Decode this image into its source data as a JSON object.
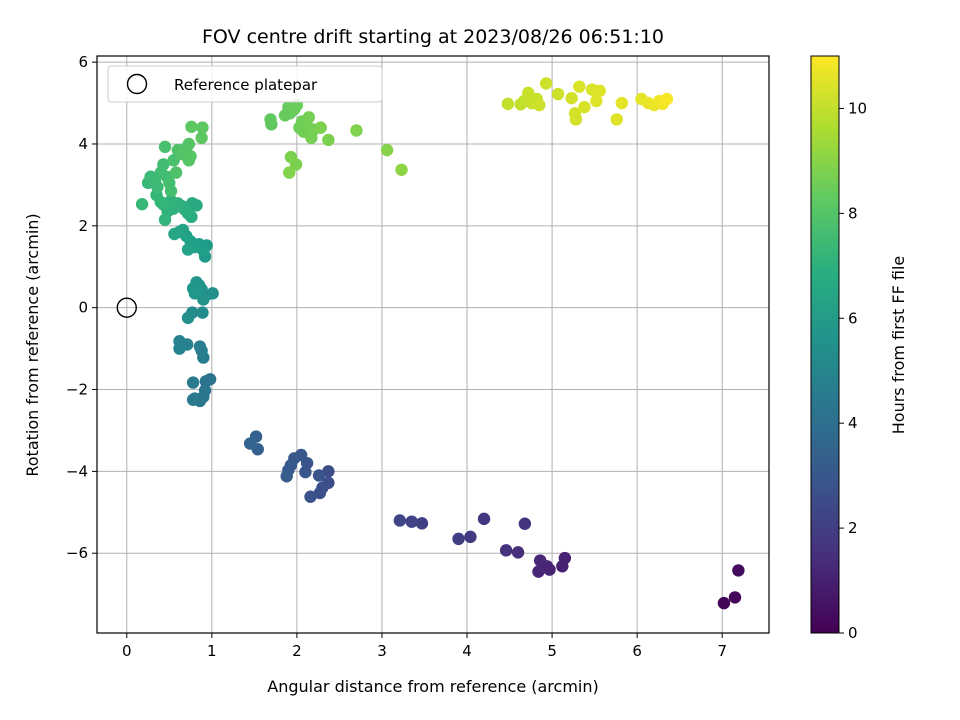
{
  "chart_data": {
    "type": "scatter",
    "title": "FOV centre drift starting at 2023/08/26 06:51:10",
    "xlabel": "Angular distance from reference (arcmin)",
    "ylabel": "Rotation from reference (arcmin)",
    "xlim": [
      -0.35,
      7.55
    ],
    "ylim": [
      -7.95,
      6.15
    ],
    "xticks": [
      0,
      1,
      2,
      3,
      4,
      5,
      6,
      7
    ],
    "yticks": [
      -6,
      -4,
      -2,
      0,
      2,
      4,
      6
    ],
    "grid": true,
    "legend": {
      "position": "top-left",
      "entries": [
        "Reference platepar"
      ]
    },
    "reference_point": {
      "x": 0,
      "y": 0
    },
    "colorbar": {
      "label": "Hours from first FF file",
      "range": [
        0,
        11
      ],
      "ticks": [
        0,
        2,
        4,
        6,
        8,
        10
      ],
      "colormap": "viridis"
    },
    "points": [
      {
        "x": 7.02,
        "y": -7.22,
        "t": 0.1
      },
      {
        "x": 7.15,
        "y": -7.08,
        "t": 0.2
      },
      {
        "x": 7.19,
        "y": -6.42,
        "t": 0.3
      },
      {
        "x": 5.15,
        "y": -6.12,
        "t": 1.0
      },
      {
        "x": 5.12,
        "y": -6.32,
        "t": 1.0
      },
      {
        "x": 4.97,
        "y": -6.4,
        "t": 1.1
      },
      {
        "x": 4.94,
        "y": -6.32,
        "t": 1.1
      },
      {
        "x": 4.86,
        "y": -6.18,
        "t": 1.2
      },
      {
        "x": 4.84,
        "y": -6.45,
        "t": 1.2
      },
      {
        "x": 4.6,
        "y": -5.98,
        "t": 1.5
      },
      {
        "x": 4.46,
        "y": -5.93,
        "t": 1.6
      },
      {
        "x": 4.68,
        "y": -5.28,
        "t": 1.7
      },
      {
        "x": 4.2,
        "y": -5.16,
        "t": 1.8
      },
      {
        "x": 4.04,
        "y": -5.6,
        "t": 1.9
      },
      {
        "x": 3.9,
        "y": -5.65,
        "t": 2.0
      },
      {
        "x": 3.47,
        "y": -5.27,
        "t": 2.1
      },
      {
        "x": 3.35,
        "y": -5.23,
        "t": 2.2
      },
      {
        "x": 3.21,
        "y": -5.2,
        "t": 2.3
      },
      {
        "x": 2.37,
        "y": -4.0,
        "t": 2.6
      },
      {
        "x": 2.37,
        "y": -4.28,
        "t": 2.6
      },
      {
        "x": 2.3,
        "y": -4.4,
        "t": 2.7
      },
      {
        "x": 2.27,
        "y": -4.53,
        "t": 2.7
      },
      {
        "x": 2.26,
        "y": -4.1,
        "t": 2.8
      },
      {
        "x": 2.16,
        "y": -4.62,
        "t": 2.8
      },
      {
        "x": 2.12,
        "y": -3.8,
        "t": 2.9
      },
      {
        "x": 2.1,
        "y": -4.02,
        "t": 2.9
      },
      {
        "x": 2.05,
        "y": -3.6,
        "t": 3.0
      },
      {
        "x": 1.97,
        "y": -3.68,
        "t": 3.0
      },
      {
        "x": 1.93,
        "y": -3.85,
        "t": 3.1
      },
      {
        "x": 1.9,
        "y": -3.97,
        "t": 3.1
      },
      {
        "x": 1.88,
        "y": -4.12,
        "t": 3.2
      },
      {
        "x": 1.52,
        "y": -3.15,
        "t": 3.4
      },
      {
        "x": 1.54,
        "y": -3.46,
        "t": 3.4
      },
      {
        "x": 1.45,
        "y": -3.32,
        "t": 3.5
      },
      {
        "x": 0.98,
        "y": -1.75,
        "t": 4.2
      },
      {
        "x": 0.93,
        "y": -1.8,
        "t": 4.2
      },
      {
        "x": 0.92,
        "y": -2.02,
        "t": 4.3
      },
      {
        "x": 0.9,
        "y": -2.18,
        "t": 4.3
      },
      {
        "x": 0.86,
        "y": -2.28,
        "t": 4.4
      },
      {
        "x": 0.8,
        "y": -2.22,
        "t": 4.4
      },
      {
        "x": 0.78,
        "y": -2.25,
        "t": 4.5
      },
      {
        "x": 0.78,
        "y": -1.83,
        "t": 4.5
      },
      {
        "x": 0.9,
        "y": -1.22,
        "t": 4.6
      },
      {
        "x": 0.88,
        "y": -1.05,
        "t": 4.7
      },
      {
        "x": 0.86,
        "y": -0.95,
        "t": 4.7
      },
      {
        "x": 0.71,
        "y": -0.9,
        "t": 4.8
      },
      {
        "x": 0.62,
        "y": -0.82,
        "t": 4.9
      },
      {
        "x": 0.62,
        "y": -1.0,
        "t": 4.9
      },
      {
        "x": 0.89,
        "y": -0.12,
        "t": 5.3
      },
      {
        "x": 0.77,
        "y": -0.12,
        "t": 5.3
      },
      {
        "x": 0.72,
        "y": -0.25,
        "t": 5.4
      },
      {
        "x": 1.01,
        "y": 0.35,
        "t": 5.5
      },
      {
        "x": 0.93,
        "y": 0.3,
        "t": 5.5
      },
      {
        "x": 0.9,
        "y": 0.2,
        "t": 5.6
      },
      {
        "x": 0.88,
        "y": 0.45,
        "t": 5.6
      },
      {
        "x": 0.85,
        "y": 0.55,
        "t": 5.7
      },
      {
        "x": 0.82,
        "y": 0.62,
        "t": 5.7
      },
      {
        "x": 0.8,
        "y": 0.35,
        "t": 5.8
      },
      {
        "x": 0.78,
        "y": 0.47,
        "t": 5.8
      },
      {
        "x": 0.94,
        "y": 1.52,
        "t": 6.0
      },
      {
        "x": 0.92,
        "y": 1.25,
        "t": 6.0
      },
      {
        "x": 0.9,
        "y": 1.4,
        "t": 6.1
      },
      {
        "x": 0.85,
        "y": 1.55,
        "t": 6.1
      },
      {
        "x": 0.8,
        "y": 1.48,
        "t": 6.2
      },
      {
        "x": 0.75,
        "y": 1.62,
        "t": 6.2
      },
      {
        "x": 0.72,
        "y": 1.42,
        "t": 6.3
      },
      {
        "x": 0.7,
        "y": 1.75,
        "t": 6.3
      },
      {
        "x": 0.66,
        "y": 1.9,
        "t": 6.4
      },
      {
        "x": 0.62,
        "y": 1.85,
        "t": 6.4
      },
      {
        "x": 0.56,
        "y": 1.8,
        "t": 6.5
      },
      {
        "x": 0.82,
        "y": 2.5,
        "t": 6.7
      },
      {
        "x": 0.77,
        "y": 2.55,
        "t": 6.7
      },
      {
        "x": 0.76,
        "y": 2.22,
        "t": 6.8
      },
      {
        "x": 0.72,
        "y": 2.3,
        "t": 6.8
      },
      {
        "x": 0.68,
        "y": 2.4,
        "t": 6.9
      },
      {
        "x": 0.65,
        "y": 2.48,
        "t": 6.9
      },
      {
        "x": 0.6,
        "y": 2.55,
        "t": 7.0
      },
      {
        "x": 0.55,
        "y": 2.42,
        "t": 7.0
      },
      {
        "x": 0.52,
        "y": 2.62,
        "t": 7.1
      },
      {
        "x": 0.48,
        "y": 2.35,
        "t": 7.1
      },
      {
        "x": 0.45,
        "y": 2.15,
        "t": 7.2
      },
      {
        "x": 0.43,
        "y": 2.52,
        "t": 7.2
      },
      {
        "x": 0.4,
        "y": 2.58,
        "t": 7.3
      },
      {
        "x": 0.35,
        "y": 2.75,
        "t": 7.3
      },
      {
        "x": 0.18,
        "y": 2.53,
        "t": 7.4
      },
      {
        "x": 0.25,
        "y": 3.05,
        "t": 7.4
      },
      {
        "x": 0.28,
        "y": 3.2,
        "t": 7.5
      },
      {
        "x": 0.33,
        "y": 3.1,
        "t": 7.5
      },
      {
        "x": 0.36,
        "y": 2.95,
        "t": 7.5
      },
      {
        "x": 0.4,
        "y": 3.3,
        "t": 7.6
      },
      {
        "x": 0.43,
        "y": 3.5,
        "t": 7.6
      },
      {
        "x": 0.47,
        "y": 3.2,
        "t": 7.6
      },
      {
        "x": 0.5,
        "y": 3.05,
        "t": 7.7
      },
      {
        "x": 0.52,
        "y": 2.85,
        "t": 7.7
      },
      {
        "x": 0.45,
        "y": 3.93,
        "t": 7.8
      },
      {
        "x": 0.55,
        "y": 3.6,
        "t": 7.8
      },
      {
        "x": 0.58,
        "y": 3.3,
        "t": 7.9
      },
      {
        "x": 0.6,
        "y": 3.85,
        "t": 7.9
      },
      {
        "x": 0.65,
        "y": 3.75,
        "t": 8.0
      },
      {
        "x": 0.7,
        "y": 3.9,
        "t": 8.0
      },
      {
        "x": 0.73,
        "y": 4.0,
        "t": 8.0
      },
      {
        "x": 0.75,
        "y": 3.7,
        "t": 8.1
      },
      {
        "x": 0.73,
        "y": 3.6,
        "t": 8.1
      },
      {
        "x": 0.76,
        "y": 4.42,
        "t": 8.2
      },
      {
        "x": 0.88,
        "y": 4.15,
        "t": 8.2
      },
      {
        "x": 0.89,
        "y": 4.4,
        "t": 8.2
      },
      {
        "x": 1.69,
        "y": 4.6,
        "t": 8.3
      },
      {
        "x": 1.7,
        "y": 4.48,
        "t": 8.3
      },
      {
        "x": 1.86,
        "y": 4.7,
        "t": 8.4
      },
      {
        "x": 1.9,
        "y": 4.9,
        "t": 8.4
      },
      {
        "x": 1.92,
        "y": 4.75,
        "t": 8.4
      },
      {
        "x": 1.97,
        "y": 4.85,
        "t": 8.5
      },
      {
        "x": 2.0,
        "y": 4.95,
        "t": 8.5
      },
      {
        "x": 2.03,
        "y": 4.4,
        "t": 8.5
      },
      {
        "x": 2.06,
        "y": 4.55,
        "t": 8.6
      },
      {
        "x": 2.08,
        "y": 4.3,
        "t": 8.6
      },
      {
        "x": 2.12,
        "y": 4.45,
        "t": 8.6
      },
      {
        "x": 2.14,
        "y": 4.65,
        "t": 8.7
      },
      {
        "x": 2.17,
        "y": 4.15,
        "t": 8.7
      },
      {
        "x": 2.2,
        "y": 4.35,
        "t": 8.7
      },
      {
        "x": 2.28,
        "y": 4.4,
        "t": 8.8
      },
      {
        "x": 2.37,
        "y": 4.1,
        "t": 8.8
      },
      {
        "x": 1.93,
        "y": 3.68,
        "t": 8.8
      },
      {
        "x": 1.99,
        "y": 3.5,
        "t": 8.8
      },
      {
        "x": 1.91,
        "y": 3.3,
        "t": 8.9
      },
      {
        "x": 2.7,
        "y": 4.33,
        "t": 8.9
      },
      {
        "x": 3.06,
        "y": 3.85,
        "t": 9.0
      },
      {
        "x": 3.23,
        "y": 3.37,
        "t": 9.1
      },
      {
        "x": 4.63,
        "y": 4.97,
        "t": 10.0
      },
      {
        "x": 4.67,
        "y": 5.05,
        "t": 10.0
      },
      {
        "x": 4.72,
        "y": 5.25,
        "t": 10.1
      },
      {
        "x": 4.76,
        "y": 5.0,
        "t": 10.1
      },
      {
        "x": 4.82,
        "y": 5.1,
        "t": 10.1
      },
      {
        "x": 4.85,
        "y": 4.95,
        "t": 10.2
      },
      {
        "x": 4.93,
        "y": 5.48,
        "t": 10.2
      },
      {
        "x": 5.07,
        "y": 5.22,
        "t": 10.2
      },
      {
        "x": 5.23,
        "y": 5.12,
        "t": 10.3
      },
      {
        "x": 5.27,
        "y": 4.75,
        "t": 10.3
      },
      {
        "x": 5.28,
        "y": 4.6,
        "t": 10.3
      },
      {
        "x": 5.32,
        "y": 5.4,
        "t": 10.4
      },
      {
        "x": 5.38,
        "y": 4.9,
        "t": 10.4
      },
      {
        "x": 5.47,
        "y": 5.33,
        "t": 10.4
      },
      {
        "x": 5.52,
        "y": 5.05,
        "t": 10.5
      },
      {
        "x": 5.56,
        "y": 5.3,
        "t": 10.5
      },
      {
        "x": 5.76,
        "y": 4.6,
        "t": 10.5
      },
      {
        "x": 5.82,
        "y": 5.0,
        "t": 10.6
      },
      {
        "x": 6.05,
        "y": 5.1,
        "t": 10.6
      },
      {
        "x": 6.13,
        "y": 5.0,
        "t": 10.7
      },
      {
        "x": 6.2,
        "y": 4.95,
        "t": 10.7
      },
      {
        "x": 6.26,
        "y": 5.05,
        "t": 10.8
      },
      {
        "x": 6.3,
        "y": 4.98,
        "t": 10.8
      },
      {
        "x": 6.35,
        "y": 5.1,
        "t": 10.9
      },
      {
        "x": 4.48,
        "y": 4.98,
        "t": 10.0
      }
    ]
  }
}
